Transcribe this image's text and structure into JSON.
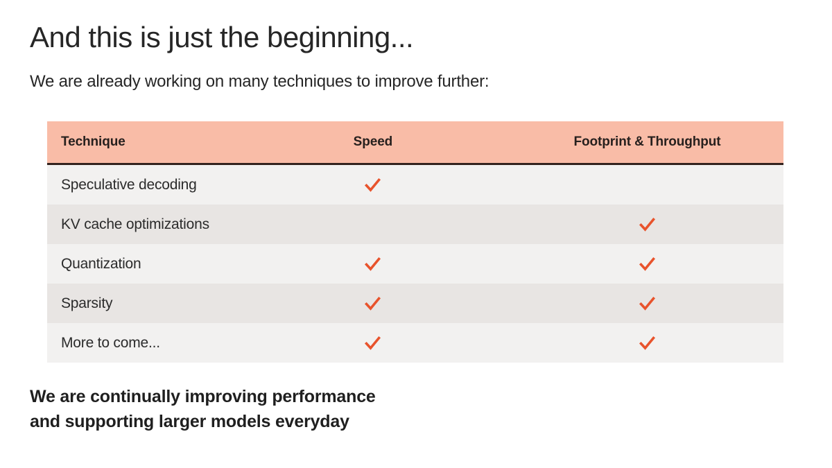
{
  "page": {
    "title": "And this is just the beginning...",
    "subtitle": "We are already working on many techniques to improve further:",
    "footer": {
      "line1": "We are continually improving performance",
      "line2": "and supporting larger models everyday"
    }
  },
  "table": {
    "columns": [
      "Technique",
      "Speed",
      "Footprint & Throughput"
    ],
    "rows": [
      {
        "technique": "Speculative decoding",
        "speed": true,
        "footprint": false
      },
      {
        "technique": "KV cache optimizations",
        "speed": false,
        "footprint": true
      },
      {
        "technique": "Quantization",
        "speed": true,
        "footprint": true
      },
      {
        "technique": "Sparsity",
        "speed": true,
        "footprint": true
      },
      {
        "technique": "More to come...",
        "speed": true,
        "footprint": true
      }
    ],
    "check_icon": "checkmark"
  },
  "colors": {
    "text": "#262626",
    "header_bg": "#F9BCA7",
    "header_border": "#33221E",
    "row_light": "#F2F1F0",
    "row_dark": "#E8E5E3",
    "check": "#E8532C"
  }
}
